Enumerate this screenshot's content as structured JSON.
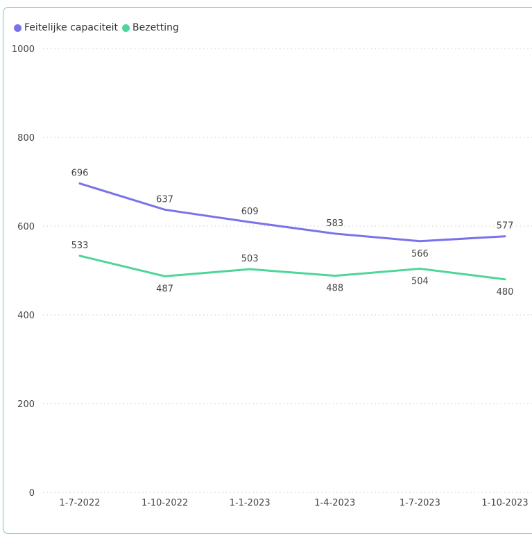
{
  "chart_data": {
    "type": "line",
    "categories": [
      "1-7-2022",
      "1-10-2022",
      "1-1-2023",
      "1-4-2023",
      "1-7-2023",
      "1-10-2023"
    ],
    "series": [
      {
        "name": "Feitelijke capaciteit",
        "color": "#7b72ea",
        "values": [
          696,
          637,
          609,
          583,
          566,
          577
        ]
      },
      {
        "name": "Bezetting",
        "color": "#4cd698",
        "values": [
          533,
          487,
          503,
          488,
          504,
          480
        ]
      }
    ],
    "ylim": [
      0,
      1000
    ],
    "yticks": [
      0,
      200,
      400,
      600,
      800,
      1000
    ],
    "grid": "horizontal dotted",
    "legend": "top-left"
  }
}
